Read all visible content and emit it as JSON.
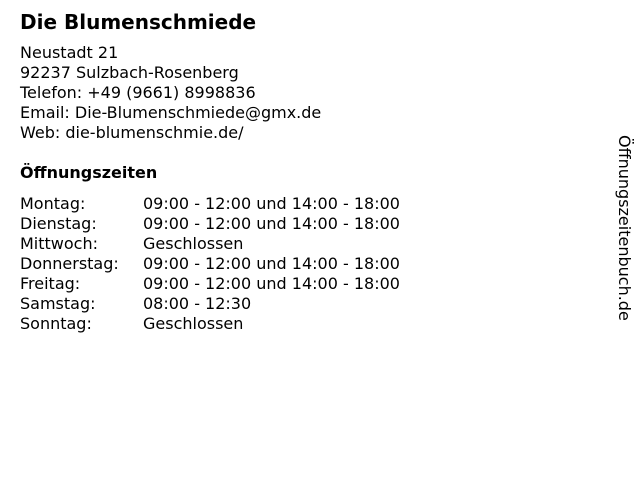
{
  "business": {
    "name": "Die Blumenschmiede",
    "address_street": "Neustadt 21",
    "address_city": "92237 Sulzbach-Rosenberg",
    "phone": "Telefon: +49 (9661) 8998836",
    "email": "Email: Die-Blumenschmiede@gmx.de",
    "web": "Web: die-blumenschmie.de/"
  },
  "hours": {
    "title": "Öffnungszeiten",
    "rows": [
      {
        "day": "Montag:",
        "time": "09:00 - 12:00 und 14:00 - 18:00"
      },
      {
        "day": "Dienstag:",
        "time": "09:00 - 12:00 und 14:00 - 18:00"
      },
      {
        "day": "Mittwoch:",
        "time": "Geschlossen"
      },
      {
        "day": "Donnerstag:",
        "time": "09:00 - 12:00 und 14:00 - 18:00"
      },
      {
        "day": "Freitag:",
        "time": "09:00 - 12:00 und 14:00 - 18:00"
      },
      {
        "day": "Samstag:",
        "time": "08:00 - 12:30"
      },
      {
        "day": "Sonntag:",
        "time": "Geschlossen"
      }
    ]
  },
  "side_label": "Öffnungszeitenbuch.de"
}
